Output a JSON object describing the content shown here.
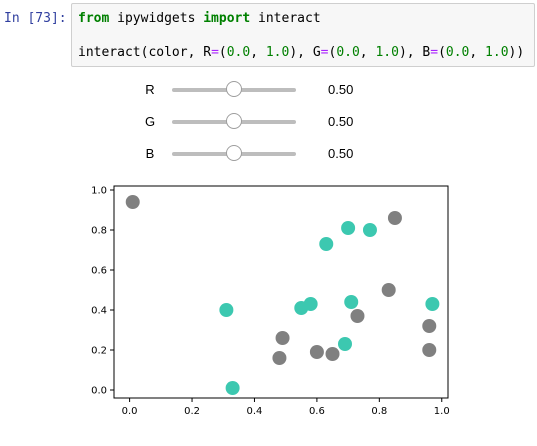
{
  "cell": {
    "prompt": "In [73]:",
    "line1": {
      "kw1": "from",
      "module": " ipywidgets ",
      "kw2": "import",
      "name": " interact"
    },
    "line2": {
      "fn": "interact(color, R",
      "eq1": "=",
      "p1": "(",
      "r_lo": "0.0",
      "c1": ", ",
      "r_hi": "1.0",
      "p2": "), G",
      "eq2": "=",
      "p3": "(",
      "g_lo": "0.0",
      "c2": ", ",
      "g_hi": "1.0",
      "p4": "), B",
      "eq3": "=",
      "p5": "(",
      "b_lo": "0.0",
      "c3": ", ",
      "b_hi": "1.0",
      "p6": "))"
    }
  },
  "sliders": [
    {
      "label": "R",
      "value": 0.5,
      "value_text": "0.50"
    },
    {
      "label": "G",
      "value": 0.5,
      "value_text": "0.50"
    },
    {
      "label": "B",
      "value": 0.5,
      "value_text": "0.50"
    }
  ],
  "chart_data": {
    "type": "scatter",
    "title": "",
    "xlabel": "",
    "ylabel": "",
    "xlim": [
      -0.05,
      1.02
    ],
    "ylim": [
      -0.04,
      1.02
    ],
    "xticks": [
      0.0,
      0.2,
      0.4,
      0.6,
      0.8,
      1.0
    ],
    "xtick_labels": [
      "0.0",
      "0.2",
      "0.4",
      "0.6",
      "0.8",
      "1.0"
    ],
    "yticks": [
      0.0,
      0.2,
      0.4,
      0.6,
      0.8,
      1.0
    ],
    "ytick_labels": [
      "0.0",
      "0.2",
      "0.4",
      "0.6",
      "0.8",
      "1.0"
    ],
    "grid": false,
    "series": [
      {
        "color": "#808080",
        "x": [
          0.01,
          0.49,
          0.48,
          0.6,
          0.65,
          0.73,
          0.83,
          0.85,
          0.96,
          0.96
        ],
        "y": [
          0.94,
          0.26,
          0.16,
          0.19,
          0.18,
          0.37,
          0.5,
          0.86,
          0.32,
          0.2
        ]
      },
      {
        "color": "#3cc8b0",
        "x": [
          0.31,
          0.33,
          0.55,
          0.58,
          0.63,
          0.69,
          0.7,
          0.71,
          0.77,
          0.97
        ],
        "y": [
          0.4,
          0.01,
          0.41,
          0.43,
          0.73,
          0.23,
          0.81,
          0.44,
          0.8,
          0.43
        ]
      }
    ]
  }
}
